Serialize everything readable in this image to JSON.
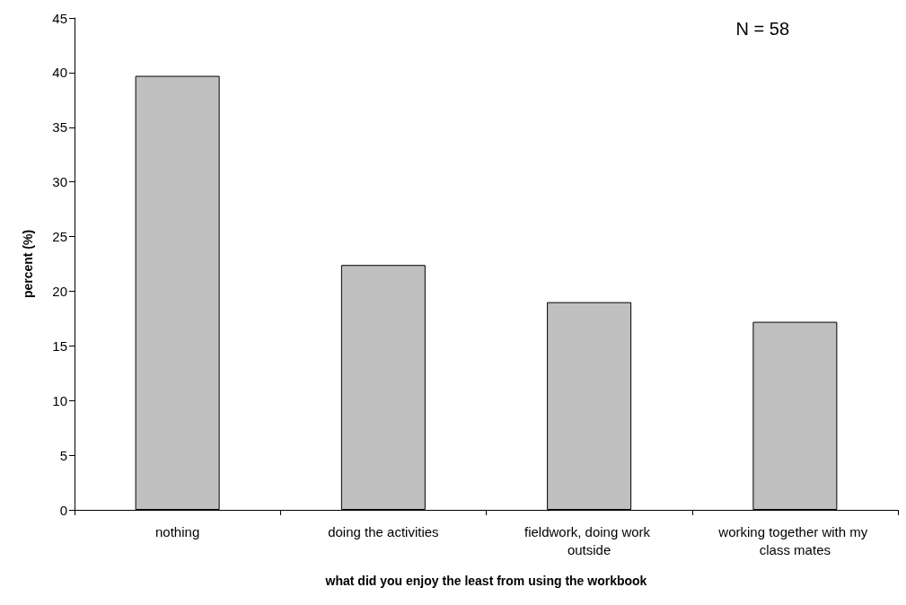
{
  "chart_data": {
    "type": "bar",
    "xlabel": "what did you enjoy the least from using the workbook",
    "ylabel": "percent (%)",
    "categories": [
      "nothing",
      "doing the activities",
      "fieldwork, doing work outside",
      "working together with my class mates"
    ],
    "values": [
      39.7,
      22.4,
      19.0,
      17.2
    ],
    "color": "#c0c0c0",
    "ylim": [
      0,
      45
    ],
    "yticks": [
      0,
      5,
      10,
      15,
      20,
      25,
      30,
      35,
      40,
      45
    ],
    "grid": false,
    "annotations": [
      "N = 58"
    ]
  }
}
